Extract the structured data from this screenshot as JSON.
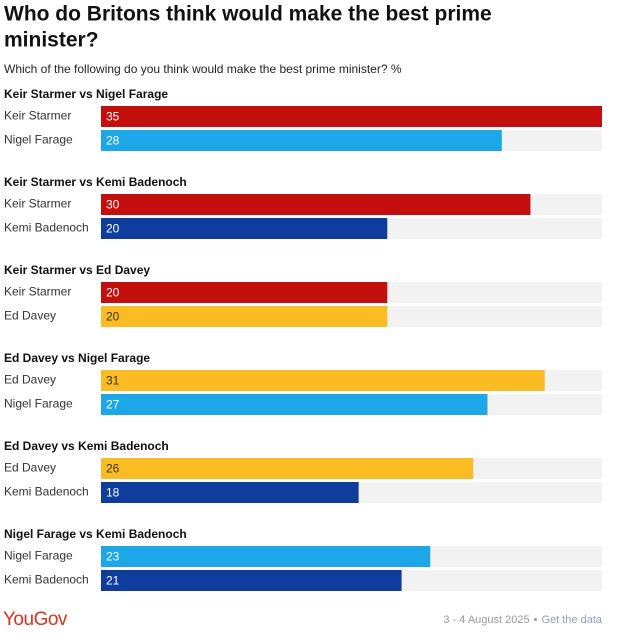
{
  "header": {
    "title": "Who do Britons think would make the best prime minister?",
    "subtitle": "Which of the following do you think would make the best prime minister? %"
  },
  "chart_data": [
    {
      "type": "bar",
      "title": "Keir Starmer vs Nigel Farage",
      "categories": [
        "Keir Starmer",
        "Nigel Farage"
      ],
      "values": [
        35,
        28
      ],
      "colors": [
        "#c40d0d",
        "#1ea7e8"
      ],
      "xlim": [
        0,
        35
      ]
    },
    {
      "type": "bar",
      "title": "Keir Starmer vs Kemi Badenoch",
      "categories": [
        "Keir Starmer",
        "Kemi Badenoch"
      ],
      "values": [
        30,
        20
      ],
      "colors": [
        "#c40d0d",
        "#0f3d9e"
      ],
      "xlim": [
        0,
        35
      ]
    },
    {
      "type": "bar",
      "title": "Keir Starmer vs Ed Davey",
      "categories": [
        "Keir Starmer",
        "Ed Davey"
      ],
      "values": [
        20,
        20
      ],
      "colors": [
        "#c40d0d",
        "#fbbb22"
      ],
      "xlim": [
        0,
        35
      ]
    },
    {
      "type": "bar",
      "title": "Ed Davey vs Nigel Farage",
      "categories": [
        "Ed Davey",
        "Nigel Farage"
      ],
      "values": [
        31,
        27
      ],
      "colors": [
        "#fbbb22",
        "#1ea7e8"
      ],
      "xlim": [
        0,
        35
      ]
    },
    {
      "type": "bar",
      "title": "Ed Davey vs Kemi Badenoch",
      "categories": [
        "Ed Davey",
        "Kemi Badenoch"
      ],
      "values": [
        26,
        18
      ],
      "colors": [
        "#fbbb22",
        "#0f3d9e"
      ],
      "xlim": [
        0,
        35
      ]
    },
    {
      "type": "bar",
      "title": "Nigel Farage vs Kemi Badenoch",
      "categories": [
        "Nigel Farage",
        "Kemi Badenoch"
      ],
      "values": [
        23,
        21
      ],
      "colors": [
        "#1ea7e8",
        "#0f3d9e"
      ],
      "xlim": [
        0,
        35
      ]
    }
  ],
  "footer": {
    "brand": "YouGov",
    "date": "3 - 4 August 2025",
    "separator": "•",
    "link": "Get the data"
  }
}
